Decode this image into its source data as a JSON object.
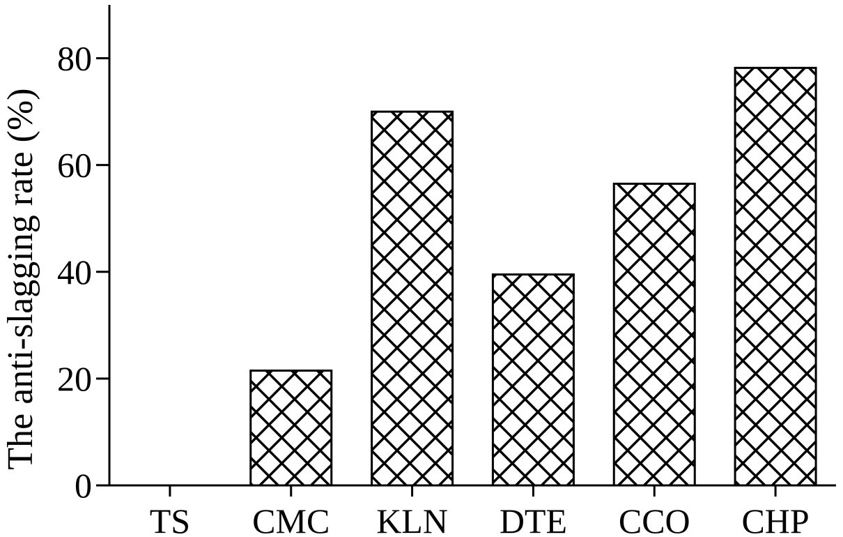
{
  "chart_data": {
    "type": "bar",
    "categories": [
      "TS",
      "CMC",
      "KLN",
      "DTE",
      "CCO",
      "CHP"
    ],
    "values": [
      0,
      21.5,
      70,
      39.5,
      56.5,
      78.2
    ],
    "ylabel": "The anti-slagging rate (%)",
    "xlabel": "",
    "ylim": [
      0,
      90
    ],
    "yticks": [
      0,
      20,
      40,
      60,
      80
    ],
    "grid": false,
    "bar_fill": "crosshatch",
    "colors": {
      "bar_stroke": "#000000",
      "bar_background": "#ffffff",
      "axis": "#000000"
    }
  }
}
